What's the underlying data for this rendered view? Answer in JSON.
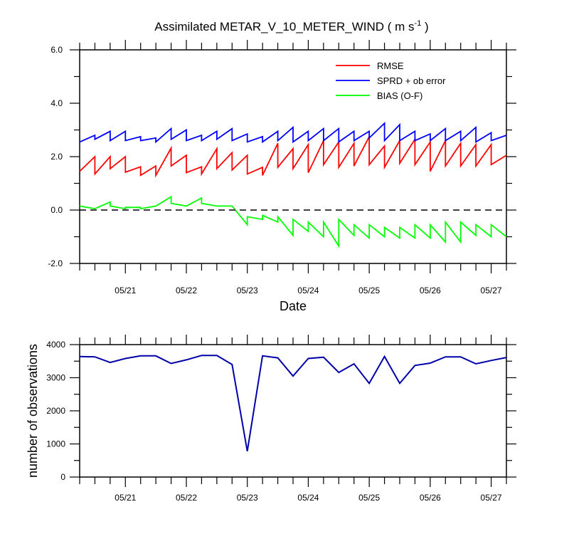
{
  "chart_data": [
    {
      "type": "line",
      "title_main": "Assimilated METAR_V_10_METER_WIND ( m s",
      "title_sup": "-1",
      "title_end": " )",
      "xlabel": "Date",
      "ylabel": "",
      "x_ticks": [
        "05/21",
        "05/22",
        "05/23",
        "05/24",
        "05/25",
        "05/26",
        "05/27"
      ],
      "y_ticks": [
        "6.0",
        "4.0",
        "2.0",
        "0.0",
        "-2.0"
      ],
      "y_tick_values": [
        6,
        4,
        2,
        0,
        -2
      ],
      "ylim": [
        -2,
        6
      ],
      "xlim_days": [
        20.25,
        27.25
      ],
      "zero_line": "dashed",
      "legend_position": "top-right",
      "series": [
        {
          "name": "RMSE",
          "color": "#ff0000",
          "points": [
            [
              20.25,
              1.45
            ],
            [
              20.5,
              2.0
            ],
            [
              20.5,
              1.35
            ],
            [
              20.75,
              2.0
            ],
            [
              20.75,
              1.55
            ],
            [
              21.0,
              2.0
            ],
            [
              21.0,
              1.42
            ],
            [
              21.25,
              1.62
            ],
            [
              21.25,
              1.3
            ],
            [
              21.5,
              1.65
            ],
            [
              21.5,
              1.3
            ],
            [
              21.75,
              2.32
            ],
            [
              21.75,
              1.65
            ],
            [
              22.0,
              2.05
            ],
            [
              22.0,
              1.4
            ],
            [
              22.25,
              1.62
            ],
            [
              22.25,
              1.35
            ],
            [
              22.5,
              2.3
            ],
            [
              22.5,
              1.55
            ],
            [
              22.75,
              2.15
            ],
            [
              22.75,
              1.5
            ],
            [
              23.0,
              2.05
            ],
            [
              23.0,
              1.35
            ],
            [
              23.25,
              1.6
            ],
            [
              23.25,
              1.3
            ],
            [
              23.5,
              2.5
            ],
            [
              23.5,
              1.6
            ],
            [
              23.75,
              2.3
            ],
            [
              23.75,
              1.55
            ],
            [
              24.0,
              2.45
            ],
            [
              24.0,
              1.4
            ],
            [
              24.25,
              2.6
            ],
            [
              24.25,
              1.7
            ],
            [
              24.5,
              2.55
            ],
            [
              24.5,
              1.6
            ],
            [
              24.75,
              2.5
            ],
            [
              24.75,
              1.65
            ],
            [
              25.0,
              2.75
            ],
            [
              25.0,
              1.7
            ],
            [
              25.25,
              2.4
            ],
            [
              25.25,
              1.6
            ],
            [
              25.5,
              2.6
            ],
            [
              25.5,
              1.75
            ],
            [
              25.75,
              2.65
            ],
            [
              25.75,
              1.7
            ],
            [
              26.0,
              2.55
            ],
            [
              26.0,
              1.45
            ],
            [
              26.25,
              2.6
            ],
            [
              26.25,
              1.65
            ],
            [
              26.5,
              2.5
            ],
            [
              26.5,
              1.65
            ],
            [
              26.75,
              2.45
            ],
            [
              26.75,
              1.65
            ],
            [
              27.0,
              2.45
            ],
            [
              27.0,
              1.7
            ],
            [
              27.25,
              2.05
            ]
          ]
        },
        {
          "name": "SPRD + ob error",
          "color": "#0000ff",
          "points": [
            [
              20.25,
              2.55
            ],
            [
              20.5,
              2.8
            ],
            [
              20.5,
              2.65
            ],
            [
              20.75,
              2.95
            ],
            [
              20.75,
              2.6
            ],
            [
              21.0,
              2.95
            ],
            [
              21.0,
              2.6
            ],
            [
              21.25,
              2.75
            ],
            [
              21.25,
              2.6
            ],
            [
              21.5,
              2.7
            ],
            [
              21.5,
              2.55
            ],
            [
              21.75,
              3.05
            ],
            [
              21.75,
              2.65
            ],
            [
              22.0,
              3.0
            ],
            [
              22.0,
              2.6
            ],
            [
              22.25,
              2.8
            ],
            [
              22.25,
              2.6
            ],
            [
              22.5,
              2.95
            ],
            [
              22.5,
              2.65
            ],
            [
              22.75,
              3.05
            ],
            [
              22.75,
              2.6
            ],
            [
              23.0,
              2.85
            ],
            [
              23.0,
              2.55
            ],
            [
              23.25,
              2.75
            ],
            [
              23.25,
              2.55
            ],
            [
              23.5,
              2.95
            ],
            [
              23.5,
              2.6
            ],
            [
              23.75,
              3.1
            ],
            [
              23.75,
              2.55
            ],
            [
              24.0,
              2.95
            ],
            [
              24.0,
              2.6
            ],
            [
              24.25,
              3.05
            ],
            [
              24.25,
              2.6
            ],
            [
              24.5,
              3.05
            ],
            [
              24.5,
              2.55
            ],
            [
              24.75,
              2.95
            ],
            [
              24.75,
              2.6
            ],
            [
              25.0,
              2.95
            ],
            [
              25.0,
              2.7
            ],
            [
              25.25,
              3.25
            ],
            [
              25.25,
              2.6
            ],
            [
              25.5,
              3.2
            ],
            [
              25.5,
              2.6
            ],
            [
              25.75,
              2.95
            ],
            [
              25.75,
              2.6
            ],
            [
              26.0,
              2.85
            ],
            [
              26.0,
              2.6
            ],
            [
              26.25,
              3.05
            ],
            [
              26.25,
              2.6
            ],
            [
              26.5,
              2.95
            ],
            [
              26.5,
              2.6
            ],
            [
              26.75,
              3.1
            ],
            [
              26.75,
              2.55
            ],
            [
              27.0,
              2.9
            ],
            [
              27.0,
              2.6
            ],
            [
              27.25,
              2.8
            ]
          ]
        },
        {
          "name": "BIAS (O-F)",
          "color": "#00ff00",
          "points": [
            [
              20.25,
              0.15
            ],
            [
              20.5,
              0.05
            ],
            [
              20.75,
              0.3
            ],
            [
              20.75,
              0.15
            ],
            [
              21.0,
              0.05
            ],
            [
              21.0,
              0.1
            ],
            [
              21.25,
              0.1
            ],
            [
              21.25,
              0.05
            ],
            [
              21.5,
              0.15
            ],
            [
              21.75,
              0.5
            ],
            [
              21.75,
              0.25
            ],
            [
              22.0,
              0.15
            ],
            [
              22.25,
              0.45
            ],
            [
              22.25,
              0.25
            ],
            [
              22.5,
              0.15
            ],
            [
              22.75,
              0.15
            ],
            [
              23.0,
              -0.55
            ],
            [
              23.0,
              -0.25
            ],
            [
              23.25,
              -0.35
            ],
            [
              23.25,
              -0.2
            ],
            [
              23.5,
              -0.45
            ],
            [
              23.5,
              -0.25
            ],
            [
              23.75,
              -0.95
            ],
            [
              23.75,
              -0.35
            ],
            [
              24.0,
              -0.8
            ],
            [
              24.0,
              -0.45
            ],
            [
              24.25,
              -1.0
            ],
            [
              24.25,
              -0.45
            ],
            [
              24.5,
              -1.35
            ],
            [
              24.5,
              -0.35
            ],
            [
              24.75,
              -0.95
            ],
            [
              24.75,
              -0.55
            ],
            [
              25.0,
              -1.05
            ],
            [
              25.0,
              -0.55
            ],
            [
              25.25,
              -1.0
            ],
            [
              25.25,
              -0.65
            ],
            [
              25.5,
              -1.05
            ],
            [
              25.5,
              -0.65
            ],
            [
              25.75,
              -1.05
            ],
            [
              25.75,
              -0.55
            ],
            [
              26.0,
              -1.05
            ],
            [
              26.0,
              -0.55
            ],
            [
              26.25,
              -1.2
            ],
            [
              26.25,
              -0.45
            ],
            [
              26.5,
              -1.2
            ],
            [
              26.5,
              -0.45
            ],
            [
              26.75,
              -0.95
            ],
            [
              26.75,
              -0.55
            ],
            [
              27.0,
              -1.0
            ],
            [
              27.0,
              -0.55
            ],
            [
              27.25,
              -1.0
            ]
          ]
        }
      ]
    },
    {
      "type": "line",
      "xlabel": "",
      "ylabel": "number of observations",
      "x_ticks": [
        "05/21",
        "05/22",
        "05/23",
        "05/24",
        "05/25",
        "05/26",
        "05/27"
      ],
      "y_ticks": [
        "4000",
        "3000",
        "2000",
        "1000",
        "0"
      ],
      "y_tick_values": [
        4000,
        3000,
        2000,
        1000,
        0
      ],
      "ylim": [
        0,
        4000
      ],
      "xlim_days": [
        20.25,
        27.25
      ],
      "series": [
        {
          "name": "",
          "color": "#0000aa",
          "points": [
            [
              20.25,
              3640
            ],
            [
              20.5,
              3630
            ],
            [
              20.75,
              3460
            ],
            [
              21.0,
              3580
            ],
            [
              21.25,
              3660
            ],
            [
              21.5,
              3660
            ],
            [
              21.75,
              3430
            ],
            [
              22.0,
              3540
            ],
            [
              22.25,
              3670
            ],
            [
              22.5,
              3670
            ],
            [
              22.75,
              3400
            ],
            [
              23.0,
              780
            ],
            [
              23.25,
              3660
            ],
            [
              23.5,
              3600
            ],
            [
              23.75,
              3050
            ],
            [
              24.0,
              3580
            ],
            [
              24.25,
              3620
            ],
            [
              24.5,
              3160
            ],
            [
              24.75,
              3420
            ],
            [
              25.0,
              2830
            ],
            [
              25.25,
              3640
            ],
            [
              25.5,
              2830
            ],
            [
              25.75,
              3370
            ],
            [
              26.0,
              3440
            ],
            [
              26.25,
              3630
            ],
            [
              26.5,
              3630
            ],
            [
              26.75,
              3420
            ],
            [
              27.0,
              3520
            ],
            [
              27.25,
              3610
            ]
          ]
        }
      ]
    }
  ]
}
